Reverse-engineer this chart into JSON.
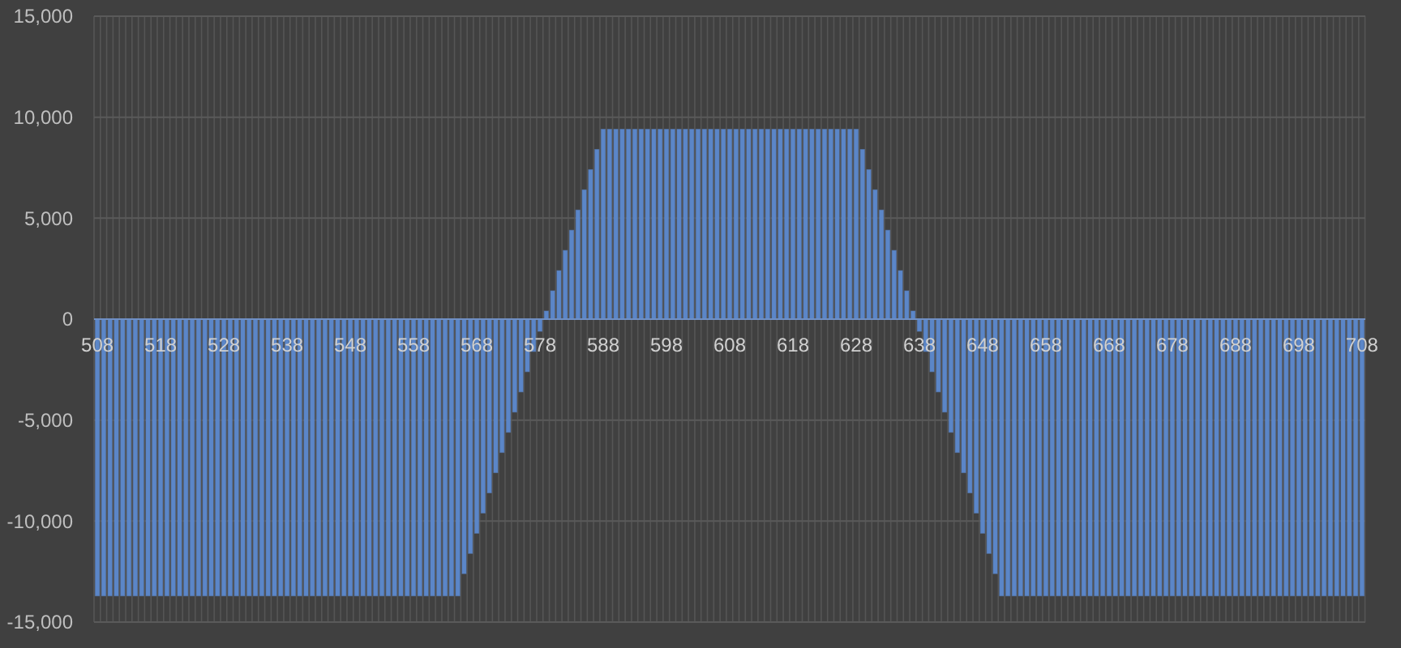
{
  "chart_data": {
    "type": "bar",
    "categories": [
      "508",
      null,
      null,
      null,
      null,
      null,
      null,
      null,
      null,
      null,
      "518",
      null,
      null,
      null,
      null,
      null,
      null,
      null,
      null,
      null,
      "528",
      null,
      null,
      null,
      null,
      null,
      null,
      null,
      null,
      null,
      "538",
      null,
      null,
      null,
      null,
      null,
      null,
      null,
      null,
      null,
      "548",
      null,
      null,
      null,
      null,
      null,
      null,
      null,
      null,
      null,
      "558",
      null,
      null,
      null,
      null,
      null,
      null,
      null,
      null,
      null,
      "568",
      null,
      null,
      null,
      null,
      null,
      null,
      null,
      null,
      null,
      "578",
      null,
      null,
      null,
      null,
      null,
      null,
      null,
      null,
      null,
      "588",
      null,
      null,
      null,
      null,
      null,
      null,
      null,
      null,
      null,
      "598",
      null,
      null,
      null,
      null,
      null,
      null,
      null,
      null,
      null,
      "608",
      null,
      null,
      null,
      null,
      null,
      null,
      null,
      null,
      null,
      "618",
      null,
      null,
      null,
      null,
      null,
      null,
      null,
      null,
      null,
      "628",
      null,
      null,
      null,
      null,
      null,
      null,
      null,
      null,
      null,
      "638",
      null,
      null,
      null,
      null,
      null,
      null,
      null,
      null,
      null,
      "648",
      null,
      null,
      null,
      null,
      null,
      null,
      null,
      null,
      null,
      "658",
      null,
      null,
      null,
      null,
      null,
      null,
      null,
      null,
      null,
      "668",
      null,
      null,
      null,
      null,
      null,
      null,
      null,
      null,
      null,
      "678",
      null,
      null,
      null,
      null,
      null,
      null,
      null,
      null,
      null,
      "688",
      null,
      null,
      null,
      null,
      null,
      null,
      null,
      null,
      null,
      "698",
      null,
      null,
      null,
      null,
      null,
      null,
      null,
      null,
      null,
      "708"
    ],
    "values": [
      -13700,
      -13700,
      -13700,
      -13700,
      -13700,
      -13700,
      -13700,
      -13700,
      -13700,
      -13700,
      -13700,
      -13700,
      -13700,
      -13700,
      -13700,
      -13700,
      -13700,
      -13700,
      -13700,
      -13700,
      -13700,
      -13700,
      -13700,
      -13700,
      -13700,
      -13700,
      -13700,
      -13700,
      -13700,
      -13700,
      -13700,
      -13700,
      -13700,
      -13700,
      -13700,
      -13700,
      -13700,
      -13700,
      -13700,
      -13700,
      -13700,
      -13700,
      -13700,
      -13700,
      -13700,
      -13700,
      -13700,
      -13700,
      -13700,
      -13700,
      -13700,
      -13700,
      -13700,
      -13700,
      -13700,
      -13700,
      -13700,
      -13700,
      -12600,
      -11600,
      -10600,
      -9600,
      -8600,
      -7600,
      -6600,
      -5600,
      -4600,
      -3600,
      -2600,
      -1600,
      -600,
      400,
      1400,
      2400,
      3400,
      4400,
      5400,
      6400,
      7400,
      8400,
      9400,
      9400,
      9400,
      9400,
      9400,
      9400,
      9400,
      9400,
      9400,
      9400,
      9400,
      9400,
      9400,
      9400,
      9400,
      9400,
      9400,
      9400,
      9400,
      9400,
      9400,
      9400,
      9400,
      9400,
      9400,
      9400,
      9400,
      9400,
      9400,
      9400,
      9400,
      9400,
      9400,
      9400,
      9400,
      9400,
      9400,
      9400,
      9400,
      9400,
      9400,
      8400,
      7400,
      6400,
      5400,
      4400,
      3400,
      2400,
      1400,
      400,
      -600,
      -1600,
      -2600,
      -3600,
      -4600,
      -5600,
      -6600,
      -7600,
      -8600,
      -9600,
      -10600,
      -11600,
      -12600,
      -13700,
      -13700,
      -13700,
      -13700,
      -13700,
      -13700,
      -13700,
      -13700,
      -13700,
      -13700,
      -13700,
      -13700,
      -13700,
      -13700,
      -13700,
      -13700,
      -13700,
      -13700,
      -13700,
      -13700,
      -13700,
      -13700,
      -13700,
      -13700,
      -13700,
      -13700,
      -13700,
      -13700,
      -13700,
      -13700,
      -13700,
      -13700,
      -13700,
      -13700,
      -13700,
      -13700,
      -13700,
      -13700,
      -13700,
      -13700,
      -13700,
      -13700,
      -13700,
      -13700,
      -13700,
      -13700,
      -13700,
      -13700,
      -13700,
      -13700,
      -13700,
      -13700,
      -13700,
      -13700,
      -13700,
      -13700,
      -13700,
      -13700
    ],
    "color": "#5b86c8",
    "ylim": [
      -15000,
      15000
    ],
    "yticks": [
      {
        "value": -15000,
        "label": "-15,000"
      },
      {
        "value": -10000,
        "label": "-10,000"
      },
      {
        "value": -5000,
        "label": "-5,000"
      },
      0,
      {
        "value": 5000,
        "label": "5,000"
      },
      {
        "value": 10000,
        "label": "10,000"
      },
      {
        "value": 15000,
        "label": "15,000"
      }
    ],
    "grid": true
  }
}
